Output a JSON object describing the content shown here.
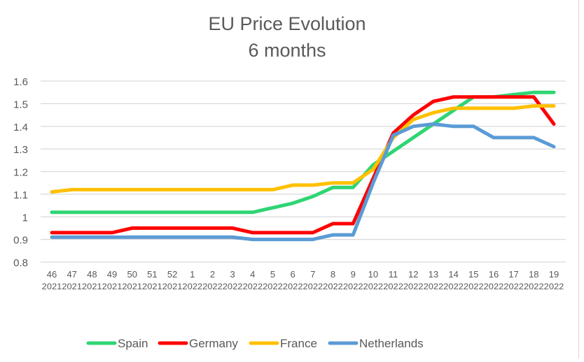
{
  "chart_data": {
    "type": "line",
    "title": "EU Price Evolution",
    "subtitle": "6 months",
    "xlabel": "",
    "ylabel": "",
    "ylim": [
      0.8,
      1.6
    ],
    "yticks": [
      "1.6",
      "1.5",
      "1.4",
      "1.3",
      "1.2",
      "1.1",
      "1",
      "0.9",
      "0.8"
    ],
    "ytick_values": [
      1.6,
      1.5,
      1.4,
      1.3,
      1.2,
      1.1,
      1.0,
      0.9,
      0.8
    ],
    "grid": true,
    "legend_position": "bottom",
    "categories": [
      {
        "week": "46",
        "year": "2021"
      },
      {
        "week": "47",
        "year": "2021"
      },
      {
        "week": "48",
        "year": "2021"
      },
      {
        "week": "49",
        "year": "2021"
      },
      {
        "week": "50",
        "year": "2021"
      },
      {
        "week": "51",
        "year": "2021"
      },
      {
        "week": "52",
        "year": "2021"
      },
      {
        "week": "1",
        "year": "2022"
      },
      {
        "week": "2",
        "year": "2022"
      },
      {
        "week": "3",
        "year": "2022"
      },
      {
        "week": "4",
        "year": "2022"
      },
      {
        "week": "5",
        "year": "2022"
      },
      {
        "week": "6",
        "year": "2022"
      },
      {
        "week": "7",
        "year": "2022"
      },
      {
        "week": "8",
        "year": "2022"
      },
      {
        "week": "9",
        "year": "2022"
      },
      {
        "week": "10",
        "year": "2022"
      },
      {
        "week": "11",
        "year": "2022"
      },
      {
        "week": "12",
        "year": "2022"
      },
      {
        "week": "13",
        "year": "2022"
      },
      {
        "week": "14",
        "year": "2022"
      },
      {
        "week": "15",
        "year": "2022"
      },
      {
        "week": "16",
        "year": "2022"
      },
      {
        "week": "17",
        "year": "2022"
      },
      {
        "week": "18",
        "year": "2022"
      },
      {
        "week": "19",
        "year": "2022"
      }
    ],
    "series": [
      {
        "name": "Spain",
        "color": "#2ed573",
        "values": [
          1.02,
          1.02,
          1.02,
          1.02,
          1.02,
          1.02,
          1.02,
          1.02,
          1.02,
          1.02,
          1.02,
          1.04,
          1.06,
          1.09,
          1.13,
          1.13,
          1.23,
          1.29,
          1.35,
          1.41,
          1.47,
          1.53,
          1.53,
          1.54,
          1.55,
          1.55
        ]
      },
      {
        "name": "Germany",
        "color": "#ff0000",
        "values": [
          0.93,
          0.93,
          0.93,
          0.93,
          0.95,
          0.95,
          0.95,
          0.95,
          0.95,
          0.95,
          0.93,
          0.93,
          0.93,
          0.93,
          0.97,
          0.97,
          1.17,
          1.37,
          1.45,
          1.51,
          1.53,
          1.53,
          1.53,
          1.53,
          1.53,
          1.41
        ]
      },
      {
        "name": "France",
        "color": "#ffc000",
        "values": [
          1.11,
          1.12,
          1.12,
          1.12,
          1.12,
          1.12,
          1.12,
          1.12,
          1.12,
          1.12,
          1.12,
          1.12,
          1.14,
          1.14,
          1.15,
          1.15,
          1.21,
          1.35,
          1.43,
          1.46,
          1.48,
          1.48,
          1.48,
          1.48,
          1.49,
          1.49
        ]
      },
      {
        "name": "Netherlands",
        "color": "#5b9bd5",
        "values": [
          0.91,
          0.91,
          0.91,
          0.91,
          0.91,
          0.91,
          0.91,
          0.91,
          0.91,
          0.91,
          0.9,
          0.9,
          0.9,
          0.9,
          0.92,
          0.92,
          1.15,
          1.36,
          1.4,
          1.41,
          1.4,
          1.4,
          1.35,
          1.35,
          1.35,
          1.31
        ]
      }
    ]
  }
}
